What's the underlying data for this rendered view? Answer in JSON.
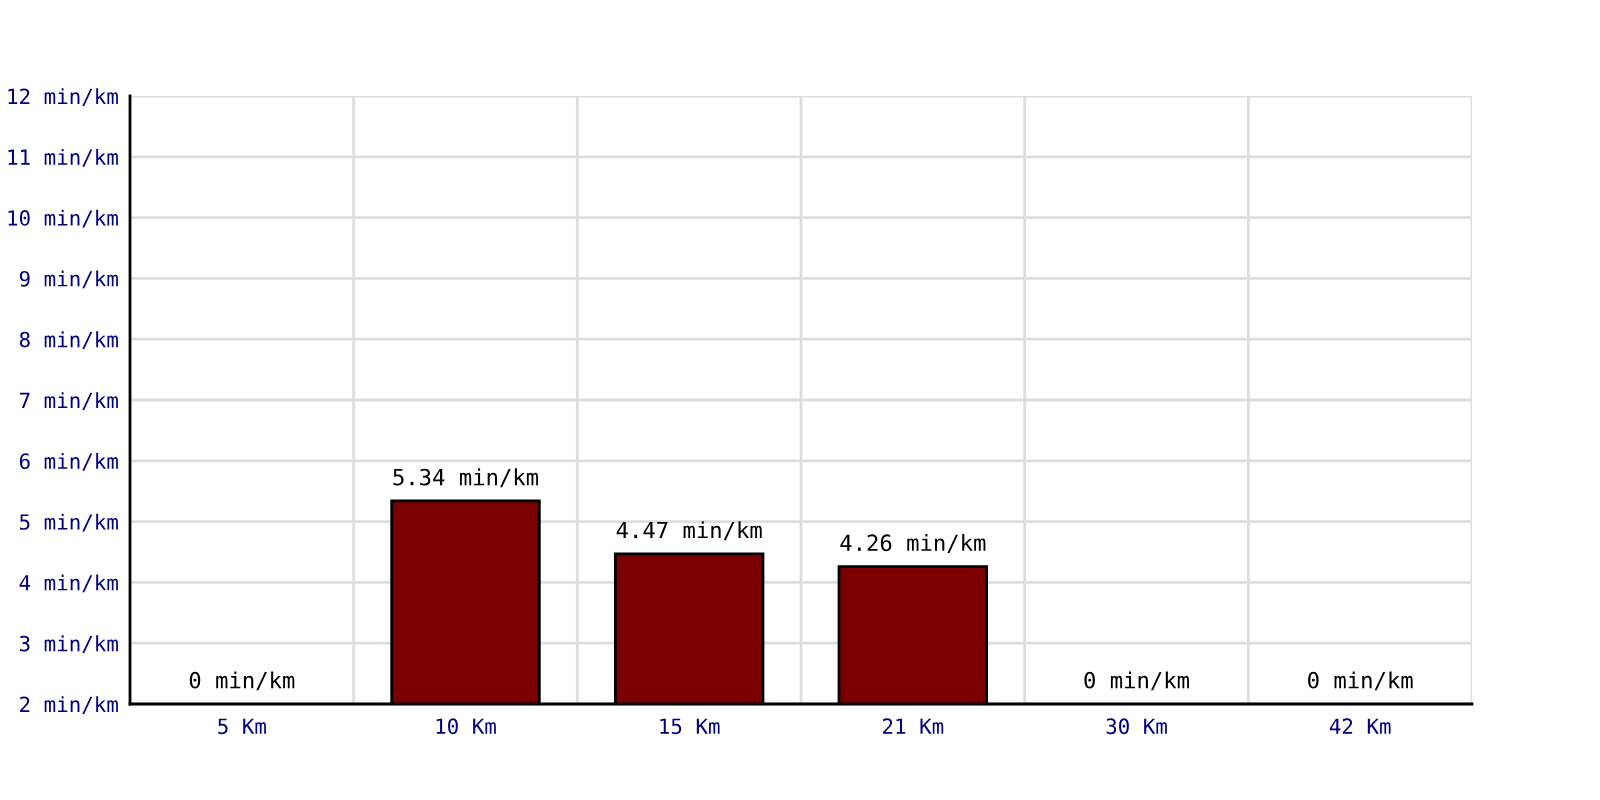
{
  "chart_data": {
    "type": "bar",
    "categories": [
      "5 Km",
      "10 Km",
      "15 Km",
      "21 Km",
      "30 Km",
      "42 Km"
    ],
    "values": [
      null,
      5.34,
      4.47,
      4.26,
      null,
      null
    ],
    "value_labels": [
      "0 min/km",
      "5.34 min/km",
      "4.47 min/km",
      "4.26 min/km",
      "0 min/km",
      "0 min/km"
    ],
    "color": "#7a0000",
    "ylim": [
      2,
      12
    ],
    "yticks": [
      {
        "value": 2,
        "label": "2 min/km"
      },
      {
        "value": 3,
        "label": "3 min/km"
      },
      {
        "value": 4,
        "label": "4 min/km"
      },
      {
        "value": 5,
        "label": "5 min/km"
      },
      {
        "value": 6,
        "label": "6 min/km"
      },
      {
        "value": 7,
        "label": "7 min/km"
      },
      {
        "value": 8,
        "label": "8 min/km"
      },
      {
        "value": 9,
        "label": "9 min/km"
      },
      {
        "value": 10,
        "label": "10 min/km"
      },
      {
        "value": 11,
        "label": "11 min/km"
      },
      {
        "value": 12,
        "label": "12 min/km"
      }
    ],
    "grid": true
  }
}
